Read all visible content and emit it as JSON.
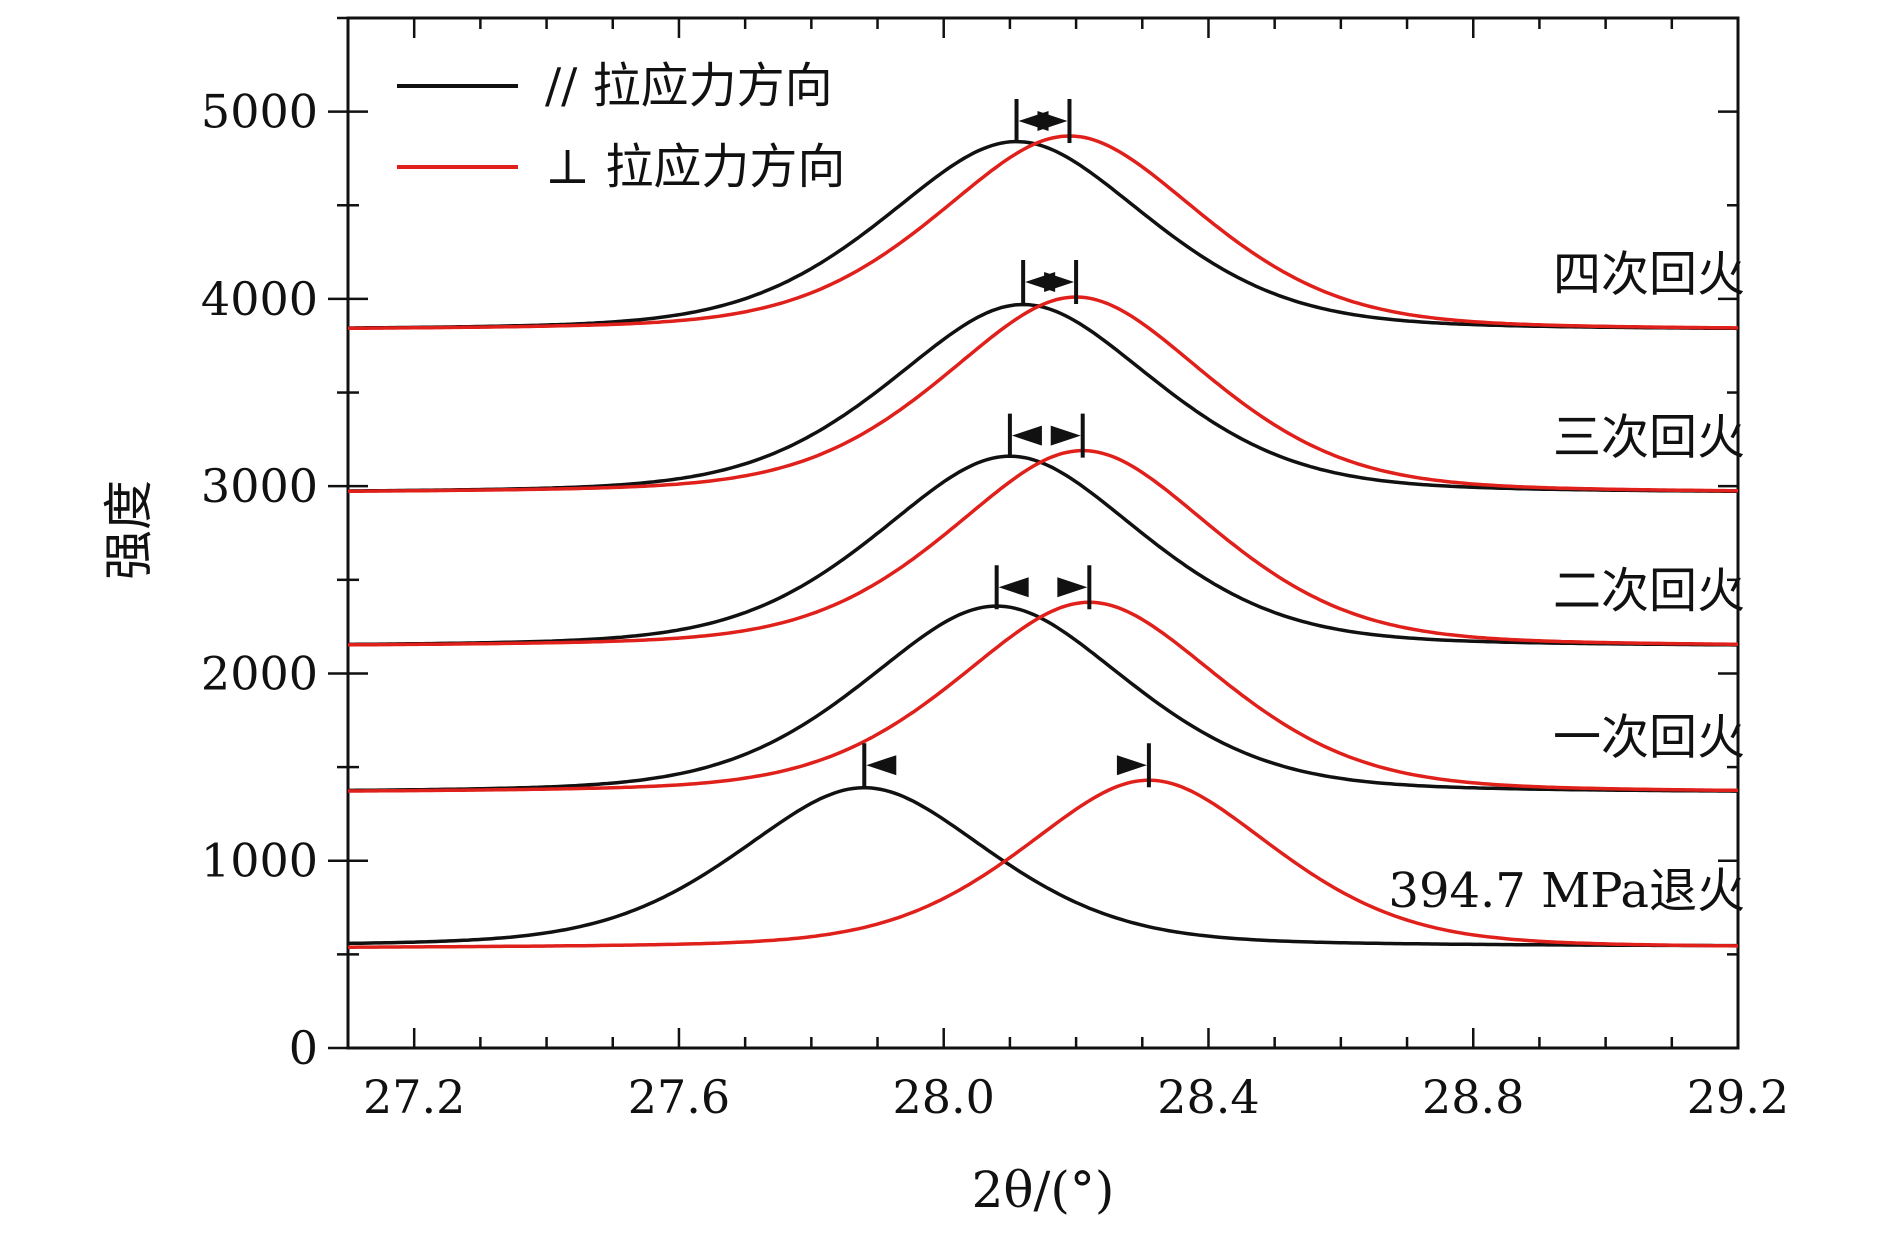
{
  "chart_data": {
    "type": "line",
    "title": "",
    "xlabel": "2θ/(°)",
    "ylabel": "强度",
    "xlim": [
      27.1,
      29.2
    ],
    "ylim": [
      0,
      5500
    ],
    "x_ticks": [
      27.2,
      27.6,
      28.0,
      28.4,
      28.8,
      29.2
    ],
    "x_tick_labels": [
      "27.2",
      "27.6",
      "28.0",
      "28.4",
      "28.8",
      "29.2"
    ],
    "y_ticks": [
      0,
      1000,
      2000,
      3000,
      4000,
      5000
    ],
    "y_tick_labels": [
      "0",
      "1000",
      "2000",
      "3000",
      "4000",
      "5000"
    ],
    "legend": {
      "position": "top-left",
      "entries": [
        {
          "name": "// 拉应力方向",
          "color": "#111111"
        },
        {
          "name": "⊥ 拉应力方向",
          "color": "#e0201b"
        }
      ]
    },
    "groups": [
      {
        "label": "394.7 MPa退火",
        "parallel": {
          "baseline": 540,
          "peak_x": 27.88,
          "peak_y": 1390,
          "width": 0.2
        },
        "perpendicular": {
          "baseline": 530,
          "peak_x": 28.31,
          "peak_y": 1430,
          "width": 0.2
        }
      },
      {
        "label": "一次回火",
        "parallel": {
          "baseline": 1360,
          "peak_x": 28.08,
          "peak_y": 2360,
          "width": 0.21
        },
        "perpendicular": {
          "baseline": 1360,
          "peak_x": 28.22,
          "peak_y": 2380,
          "width": 0.21
        }
      },
      {
        "label": "二次回火",
        "parallel": {
          "baseline": 2140,
          "peak_x": 28.1,
          "peak_y": 3160,
          "width": 0.21
        },
        "perpendicular": {
          "baseline": 2140,
          "peak_x": 28.21,
          "peak_y": 3190,
          "width": 0.21
        }
      },
      {
        "label": "三次回火",
        "parallel": {
          "baseline": 2960,
          "peak_x": 28.12,
          "peak_y": 3970,
          "width": 0.21
        },
        "perpendicular": {
          "baseline": 2960,
          "peak_x": 28.2,
          "peak_y": 4010,
          "width": 0.21
        }
      },
      {
        "label": "四次回火",
        "parallel": {
          "baseline": 3830,
          "peak_x": 28.11,
          "peak_y": 4840,
          "width": 0.21
        },
        "perpendicular": {
          "baseline": 3830,
          "peak_x": 28.19,
          "peak_y": 4870,
          "width": 0.21
        }
      }
    ]
  }
}
